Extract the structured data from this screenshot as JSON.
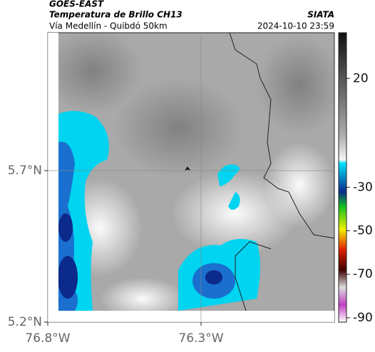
{
  "header": {
    "title": "GOES-EAST",
    "subtitle": "Temperatura de Brillo CH13",
    "source": "SIATA",
    "route": "Vía Medellín - Quibdó 50km",
    "timestamp": "2024-10-10 23:59"
  },
  "map": {
    "xlim": [
      -76.8,
      -75.865
    ],
    "ylim": [
      5.2,
      6.155
    ],
    "xticks": [
      {
        "value": -76.8,
        "label": "76.8°W"
      },
      {
        "value": -76.3,
        "label": "76.3°W"
      }
    ],
    "yticks": [
      {
        "value": 5.2,
        "label": "5.2°N"
      },
      {
        "value": 5.7,
        "label": "5.7°N"
      }
    ],
    "grid": true
  },
  "colorbar": {
    "lim": [
      -92,
      41
    ],
    "ticks": [
      20,
      -30,
      -50,
      -70,
      -90
    ]
  }
}
